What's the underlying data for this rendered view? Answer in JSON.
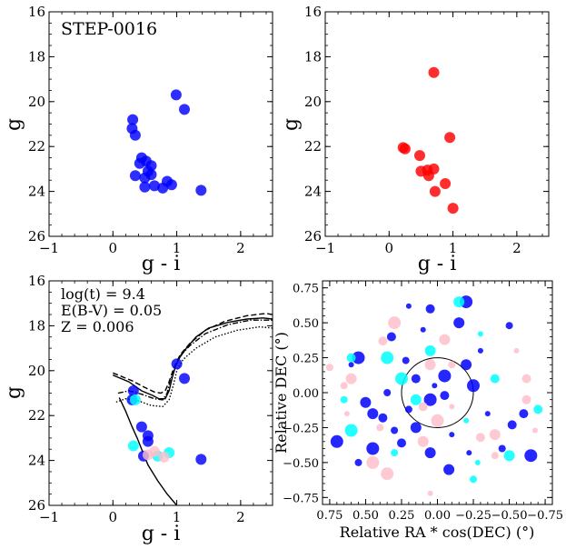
{
  "chart_data": [
    {
      "type": "scatter",
      "panel": "top-left",
      "title": "STEP-0016",
      "xlabel": "g - i",
      "ylabel": "g",
      "xlim": [
        -1,
        2.5
      ],
      "ylim": [
        26,
        16
      ],
      "y_inverted": true,
      "xticks": [
        "−1",
        "0",
        "1",
        "2"
      ],
      "yticks": [
        "16",
        "18",
        "20",
        "22",
        "24",
        "26"
      ],
      "series": [
        {
          "color": "#0000ff",
          "points": [
            [
              0.99,
              19.7
            ],
            [
              1.12,
              20.35
            ],
            [
              0.31,
              20.8
            ],
            [
              0.3,
              21.2
            ],
            [
              0.35,
              21.5
            ],
            [
              0.45,
              22.5
            ],
            [
              0.42,
              22.75
            ],
            [
              0.52,
              22.65
            ],
            [
              0.6,
              22.85
            ],
            [
              0.55,
              23.1
            ],
            [
              0.35,
              23.3
            ],
            [
              0.6,
              23.25
            ],
            [
              0.5,
              23.4
            ],
            [
              0.85,
              23.55
            ],
            [
              0.92,
              23.7
            ],
            [
              0.65,
              23.75
            ],
            [
              0.78,
              23.85
            ],
            [
              0.5,
              23.8
            ],
            [
              1.38,
              23.95
            ]
          ]
        }
      ]
    },
    {
      "type": "scatter",
      "panel": "top-right",
      "xlabel": "g - i",
      "ylabel": "g",
      "xlim": [
        -1,
        2.5
      ],
      "ylim": [
        26,
        16
      ],
      "y_inverted": true,
      "xticks": [
        "−1",
        "0",
        "1",
        "2"
      ],
      "yticks": [
        "16",
        "18",
        "20",
        "22",
        "24",
        "26"
      ],
      "series": [
        {
          "color": "#ff0000",
          "points": [
            [
              0.7,
              18.7
            ],
            [
              0.95,
              21.6
            ],
            [
              0.22,
              22.05
            ],
            [
              0.25,
              22.1
            ],
            [
              0.48,
              22.4
            ],
            [
              0.5,
              23.1
            ],
            [
              0.6,
              23.05
            ],
            [
              0.7,
              23.0
            ],
            [
              0.62,
              23.3
            ],
            [
              0.88,
              23.65
            ],
            [
              0.72,
              24.0
            ],
            [
              1.0,
              24.75
            ]
          ]
        }
      ]
    },
    {
      "type": "scatter",
      "panel": "bottom-left",
      "xlabel": "g - i",
      "ylabel": "g",
      "xlim": [
        -1,
        2.5
      ],
      "ylim": [
        26,
        16
      ],
      "y_inverted": true,
      "xticks": [
        "−1",
        "0",
        "1",
        "2"
      ],
      "yticks": [
        "16",
        "18",
        "20",
        "22",
        "24",
        "26"
      ],
      "annotations": [
        "log(t) = 9.4",
        "E(B-V) = 0.05",
        "Z = 0.006"
      ],
      "series": [
        {
          "color": "#0000ff",
          "points": [
            [
              1.0,
              19.7
            ],
            [
              1.12,
              20.35
            ],
            [
              0.32,
              20.9
            ],
            [
              0.3,
              21.3
            ],
            [
              0.45,
              22.5
            ],
            [
              0.55,
              22.9
            ],
            [
              0.55,
              23.15
            ],
            [
              0.48,
              23.8
            ],
            [
              1.38,
              23.95
            ]
          ]
        },
        {
          "color": "#00ffff",
          "points": [
            [
              0.35,
              21.3
            ],
            [
              0.32,
              23.35
            ],
            [
              0.88,
              23.65
            ],
            [
              0.7,
              23.8
            ]
          ]
        },
        {
          "color": "#ffc0cb",
          "points": [
            [
              0.65,
              23.6
            ],
            [
              0.8,
              23.85
            ],
            [
              0.55,
              23.75
            ]
          ]
        }
      ],
      "isochrones": [
        {
          "style": "solid",
          "points": [
            [
              0.0,
              20.2
            ],
            [
              0.25,
              20.5
            ],
            [
              0.45,
              20.9
            ],
            [
              0.62,
              21.1
            ],
            [
              0.72,
              21.25
            ],
            [
              0.82,
              21.25
            ],
            [
              0.88,
              20.9
            ],
            [
              0.93,
              20.3
            ],
            [
              0.98,
              19.8
            ],
            [
              1.05,
              19.4
            ],
            [
              1.15,
              19.0
            ],
            [
              1.3,
              18.5
            ],
            [
              1.5,
              18.1
            ],
            [
              1.8,
              17.85
            ],
            [
              2.1,
              17.7
            ],
            [
              2.35,
              17.65
            ],
            [
              2.5,
              17.7
            ]
          ],
          "branch": [
            [
              0.1,
              21.2
            ],
            [
              0.2,
              21.8
            ],
            [
              0.3,
              22.5
            ],
            [
              0.38,
              23.0
            ],
            [
              0.45,
              23.5
            ],
            [
              0.55,
              24.2
            ],
            [
              0.7,
              24.9
            ],
            [
              0.85,
              25.5
            ],
            [
              1.0,
              26.0
            ]
          ]
        },
        {
          "style": "dashed",
          "points": [
            [
              0.0,
              20.1
            ],
            [
              0.3,
              20.45
            ],
            [
              0.5,
              20.75
            ],
            [
              0.65,
              20.95
            ],
            [
              0.75,
              21.0
            ],
            [
              0.82,
              20.9
            ],
            [
              0.88,
              20.5
            ],
            [
              0.95,
              19.9
            ],
            [
              1.05,
              19.3
            ],
            [
              1.2,
              18.8
            ],
            [
              1.45,
              18.2
            ],
            [
              1.75,
              17.8
            ],
            [
              2.1,
              17.55
            ],
            [
              2.4,
              17.45
            ],
            [
              2.5,
              17.5
            ]
          ]
        },
        {
          "style": "dashdot",
          "points": [
            [
              0.08,
              21.0
            ],
            [
              0.25,
              20.9
            ],
            [
              0.45,
              21.05
            ],
            [
              0.65,
              21.25
            ],
            [
              0.78,
              21.3
            ],
            [
              0.85,
              21.0
            ],
            [
              0.9,
              20.4
            ],
            [
              0.97,
              19.9
            ],
            [
              1.05,
              19.35
            ],
            [
              1.2,
              18.9
            ],
            [
              1.45,
              18.35
            ],
            [
              1.8,
              17.95
            ],
            [
              2.15,
              17.75
            ],
            [
              2.5,
              17.75
            ]
          ]
        },
        {
          "style": "dotted",
          "points": [
            [
              0.05,
              21.4
            ],
            [
              0.2,
              21.25
            ],
            [
              0.4,
              21.35
            ],
            [
              0.6,
              21.55
            ],
            [
              0.78,
              21.6
            ],
            [
              0.88,
              21.3
            ],
            [
              0.95,
              20.6
            ],
            [
              1.0,
              20.0
            ],
            [
              1.1,
              19.5
            ],
            [
              1.3,
              19.0
            ],
            [
              1.6,
              18.5
            ],
            [
              1.95,
              18.2
            ],
            [
              2.3,
              18.05
            ],
            [
              2.5,
              18.1
            ]
          ]
        }
      ]
    },
    {
      "type": "scatter",
      "panel": "bottom-right",
      "xlabel": "Relative RA * cos(DEC) (°)",
      "ylabel": "Relative DEC (°)",
      "xlim": [
        0.8,
        -0.8
      ],
      "ylim": [
        -0.8,
        0.8
      ],
      "x_inverted": true,
      "xticks": [
        "0.75",
        "0.50",
        "0.25",
        "0.00",
        "−0.25",
        "−0.50",
        "−0.75"
      ],
      "yticks": [
        "−0.75",
        "−0.50",
        "−0.25",
        "0.00",
        "0.25",
        "0.50",
        "0.75"
      ],
      "circle": {
        "center": [
          0,
          0
        ],
        "radius": 0.25
      },
      "series": [
        {
          "color": "#0000ff",
          "points": [
            [
              0.2,
              0.62
            ],
            [
              0.05,
              0.6
            ],
            [
              -0.2,
              0.65
            ],
            [
              -0.5,
              0.48
            ],
            [
              -0.15,
              0.5
            ],
            [
              0.1,
              0.45
            ],
            [
              0.32,
              0.4
            ],
            [
              0.55,
              0.25
            ],
            [
              0.22,
              0.23
            ],
            [
              -0.2,
              0.2
            ],
            [
              -0.3,
              0.3
            ],
            [
              0.15,
              0.1
            ],
            [
              -0.05,
              0.12
            ],
            [
              0.35,
              0.0
            ],
            [
              0.5,
              -0.07
            ],
            [
              0.02,
              0.05
            ],
            [
              -0.05,
              -0.02
            ],
            [
              0.05,
              -0.05
            ],
            [
              0.2,
              -0.12
            ],
            [
              0.45,
              -0.15
            ],
            [
              -0.35,
              -0.15
            ],
            [
              -0.52,
              -0.23
            ],
            [
              0.7,
              -0.35
            ],
            [
              0.3,
              -0.27
            ],
            [
              0.15,
              -0.25
            ],
            [
              -0.1,
              -0.3
            ],
            [
              0.25,
              -0.36
            ],
            [
              0.45,
              -0.4
            ],
            [
              -0.45,
              -0.4
            ],
            [
              0.05,
              -0.43
            ],
            [
              -0.22,
              -0.43
            ],
            [
              -0.6,
              -0.15
            ],
            [
              -0.65,
              -0.45
            ],
            [
              0.55,
              -0.5
            ],
            [
              -0.08,
              -0.55
            ],
            [
              0.6,
              0.2
            ],
            [
              0.38,
              -0.18
            ],
            [
              -0.25,
              0.05
            ]
          ]
        },
        {
          "color": "#00ffff",
          "points": [
            [
              -0.15,
              0.65
            ],
            [
              -0.3,
              0.42
            ],
            [
              0.6,
              0.25
            ],
            [
              0.25,
              0.1
            ],
            [
              0.65,
              -0.05
            ],
            [
              0.15,
              -0.05
            ],
            [
              -0.2,
              -0.2
            ],
            [
              -0.7,
              -0.12
            ],
            [
              0.6,
              -0.27
            ],
            [
              0.3,
              -0.43
            ],
            [
              -0.5,
              -0.45
            ],
            [
              -0.28,
              -0.5
            ],
            [
              -0.4,
              0.1
            ],
            [
              0.35,
              0.25
            ],
            [
              -0.25,
              -0.62
            ],
            [
              0.05,
              0.3
            ]
          ]
        },
        {
          "color": "#ffc0cb",
          "points": [
            [
              0.75,
              0.18
            ],
            [
              0.6,
              0.1
            ],
            [
              0.63,
              -0.15
            ],
            [
              0.38,
              0.37
            ],
            [
              0.3,
              0.5
            ],
            [
              -0.1,
              0.2
            ],
            [
              0.05,
              0.2
            ],
            [
              -0.1,
              -0.1
            ],
            [
              0.1,
              -0.1
            ],
            [
              0.0,
              -0.2
            ],
            [
              0.4,
              -0.25
            ],
            [
              -0.4,
              -0.3
            ],
            [
              -0.68,
              -0.27
            ],
            [
              -0.3,
              -0.32
            ],
            [
              0.45,
              -0.5
            ],
            [
              -0.4,
              -0.45
            ],
            [
              0.1,
              -0.35
            ],
            [
              0.05,
              -0.72
            ],
            [
              -0.62,
              0.1
            ],
            [
              0.35,
              -0.58
            ],
            [
              0.65,
              0.05
            ],
            [
              -0.05,
              0.38
            ],
            [
              -0.55,
              0.3
            ],
            [
              -0.62,
              -0.05
            ]
          ]
        }
      ]
    }
  ]
}
